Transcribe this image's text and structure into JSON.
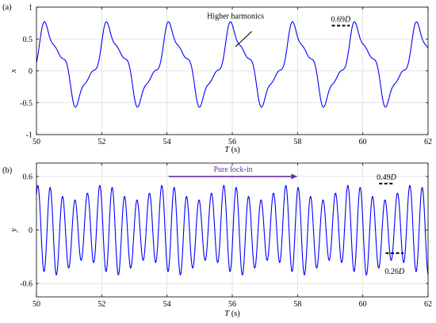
{
  "chart_data": [
    {
      "panel_label": "(a)",
      "type": "line",
      "xlabel_var": "T",
      "xlabel_unit": " (s)",
      "ylabel": "x",
      "xlim": [
        50,
        62
      ],
      "ylim": [
        -1,
        1
      ],
      "xticks": [
        50,
        52,
        54,
        56,
        58,
        60,
        62
      ],
      "yticks": [
        -1,
        -0.5,
        0,
        0.5,
        1
      ],
      "ytick_labels": [
        "-1",
        "-0.5",
        "0",
        "0.5",
        "1"
      ],
      "grid": true,
      "series": [
        {
          "color": "#0000ff",
          "period": 1.9,
          "phase_peak": 50.35,
          "shape": {
            "mean": 0.1,
            "fund_amp": 0.5,
            "h3_amp": 0.15,
            "h5_amp": 0.06
          }
        }
      ],
      "annotations": [
        {
          "kind": "text",
          "text": "Higher harmonics",
          "x": 56.1,
          "y": 0.82
        },
        {
          "kind": "pointer",
          "from": [
            56.6,
            0.62
          ],
          "to": [
            56.1,
            0.38
          ]
        },
        {
          "kind": "amp_marker",
          "value_name": "0.69",
          "unit_symbol": "D",
          "x0": 59.05,
          "x1": 59.6,
          "y": 0.71
        }
      ]
    },
    {
      "panel_label": "(b)",
      "type": "line",
      "xlabel_var": "T",
      "xlabel_unit": " (s)",
      "ylabel": "y",
      "xlim": [
        50,
        62
      ],
      "ylim": [
        -0.75,
        0.75
      ],
      "xticks": [
        50,
        52,
        54,
        56,
        58,
        60,
        62
      ],
      "yticks": [
        -0.6,
        0,
        0.6
      ],
      "ytick_labels": [
        "-0.6",
        "0",
        "0.6"
      ],
      "grid": true,
      "series": [
        {
          "color": "#0000ff",
          "period": 0.38,
          "shape": {
            "amp_min": 0.35,
            "amp_max": 0.49,
            "mod_period": 1.9,
            "offset": -0.05
          }
        }
      ],
      "annotations": [
        {
          "kind": "arrow",
          "text": "Pure lock-in",
          "x0": 54.05,
          "x1": 58.0,
          "y": 0.6,
          "color": "#6a2ea8"
        },
        {
          "kind": "amp_marker",
          "value_name": "0.49",
          "unit_symbol": "D",
          "x0": 60.5,
          "x1": 60.95,
          "y": 0.52
        },
        {
          "kind": "amp_marker",
          "value_name": "0.26",
          "unit_symbol": "D",
          "x0": 60.7,
          "x1": 61.25,
          "y": -0.26
        }
      ]
    }
  ]
}
